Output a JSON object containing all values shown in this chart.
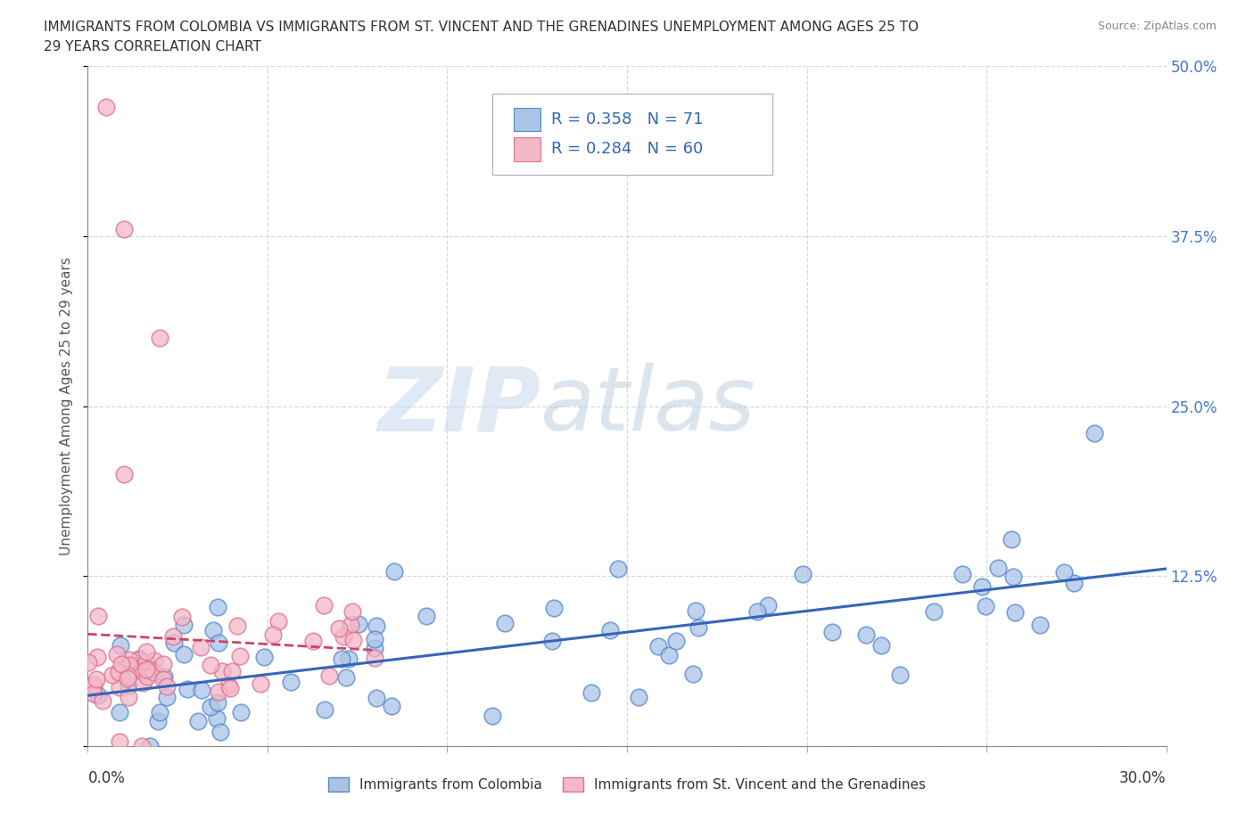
{
  "title_line1": "IMMIGRANTS FROM COLOMBIA VS IMMIGRANTS FROM ST. VINCENT AND THE GRENADINES UNEMPLOYMENT AMONG AGES 25 TO",
  "title_line2": "29 YEARS CORRELATION CHART",
  "source": "Source: ZipAtlas.com",
  "ylabel": "Unemployment Among Ages 25 to 29 years",
  "xlim": [
    0.0,
    0.3
  ],
  "ylim": [
    -0.02,
    0.52
  ],
  "ylim_data": [
    0.0,
    0.5
  ],
  "xticks": [
    0.0,
    0.05,
    0.1,
    0.15,
    0.2,
    0.25,
    0.3
  ],
  "xticklabels_left": "0.0%",
  "xticklabels_right": "30.0%",
  "yticks": [
    0.0,
    0.125,
    0.25,
    0.375,
    0.5
  ],
  "yticklabels": [
    "",
    "12.5%",
    "25.0%",
    "37.5%",
    "50.0%"
  ],
  "grid_color": "#d0d8e8",
  "background_color": "#ffffff",
  "series1_color": "#aac4e8",
  "series1_edge": "#5588cc",
  "series2_color": "#f4b8c8",
  "series2_edge": "#e07090",
  "trendline1_color": "#3366bb",
  "trendline2_color": "#cc4466",
  "legend1_R": 0.358,
  "legend1_N": 71,
  "legend2_R": 0.284,
  "legend2_N": 60,
  "legend1_label": "Immigrants from Colombia",
  "legend2_label": "Immigrants from St. Vincent and the Grenadines",
  "watermark_zip_color": "#c0d4e8",
  "watermark_atlas_color": "#a8c8e0"
}
